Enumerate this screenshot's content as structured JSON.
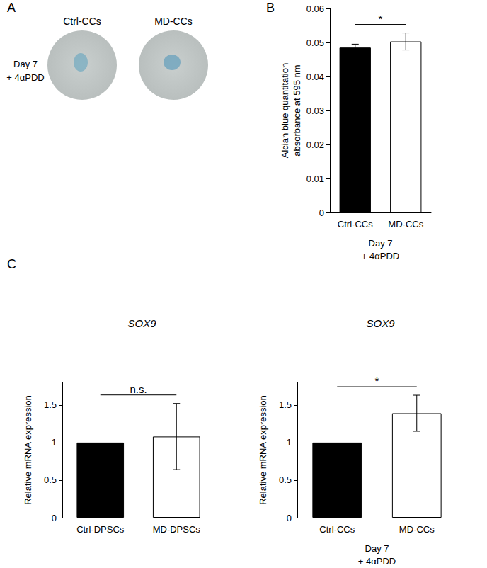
{
  "panel_labels": [
    "A",
    "B",
    "C"
  ],
  "panel_a": {
    "conditions": [
      "Ctrl-CCs",
      "MD-CCs"
    ],
    "row_label": "Day 7\n+ 4αPDD"
  },
  "chart_data": [
    {
      "type": "bar",
      "categories": [
        "Ctrl-CCs",
        "MD-CCs"
      ],
      "values": [
        0.0485,
        0.0503
      ],
      "errors": [
        0.001,
        0.0025
      ],
      "colors": [
        "#000000",
        "#ffffff"
      ],
      "ylabel": "Alcian blue quantitation\nabsorbance at 595 nm",
      "xlabel": "Day 7\n+ 4αPDD",
      "ylim": [
        0,
        0.06
      ],
      "yticks": [
        0,
        0.01,
        0.02,
        0.03,
        0.04,
        0.05,
        0.06
      ],
      "grid": false,
      "annotations": [
        {
          "text": "*",
          "between": [
            "Ctrl-CCs",
            "MD-CCs"
          ]
        }
      ]
    },
    {
      "type": "bar",
      "title": "SOX9",
      "categories": [
        "Ctrl-DPSCs",
        "MD-DPSCs"
      ],
      "values": [
        1,
        1.08
      ],
      "errors": [
        null,
        0.44
      ],
      "colors": [
        "#000000",
        "#ffffff"
      ],
      "ylabel": "Relative mRNA expression",
      "ylim": [
        0,
        1.8
      ],
      "yticks": [
        0,
        0.5,
        1,
        1.5
      ],
      "grid": false,
      "annotations": [
        {
          "text": "n.s.",
          "between": [
            "Ctrl-DPSCs",
            "MD-DPSCs"
          ]
        }
      ]
    },
    {
      "type": "bar",
      "title": "SOX9",
      "categories": [
        "Ctrl-CCs",
        "MD-CCs"
      ],
      "values": [
        1,
        1.39
      ],
      "errors": [
        null,
        0.24
      ],
      "colors": [
        "#000000",
        "#ffffff"
      ],
      "ylabel": "Relative mRNA expression",
      "xlabel": "Day 7\n+ 4αPDD",
      "ylim": [
        0,
        1.8
      ],
      "yticks": [
        0,
        0.5,
        1,
        1.5
      ],
      "grid": false,
      "annotations": [
        {
          "text": "*",
          "between": [
            "Ctrl-CCs",
            "MD-CCs"
          ]
        }
      ]
    }
  ]
}
